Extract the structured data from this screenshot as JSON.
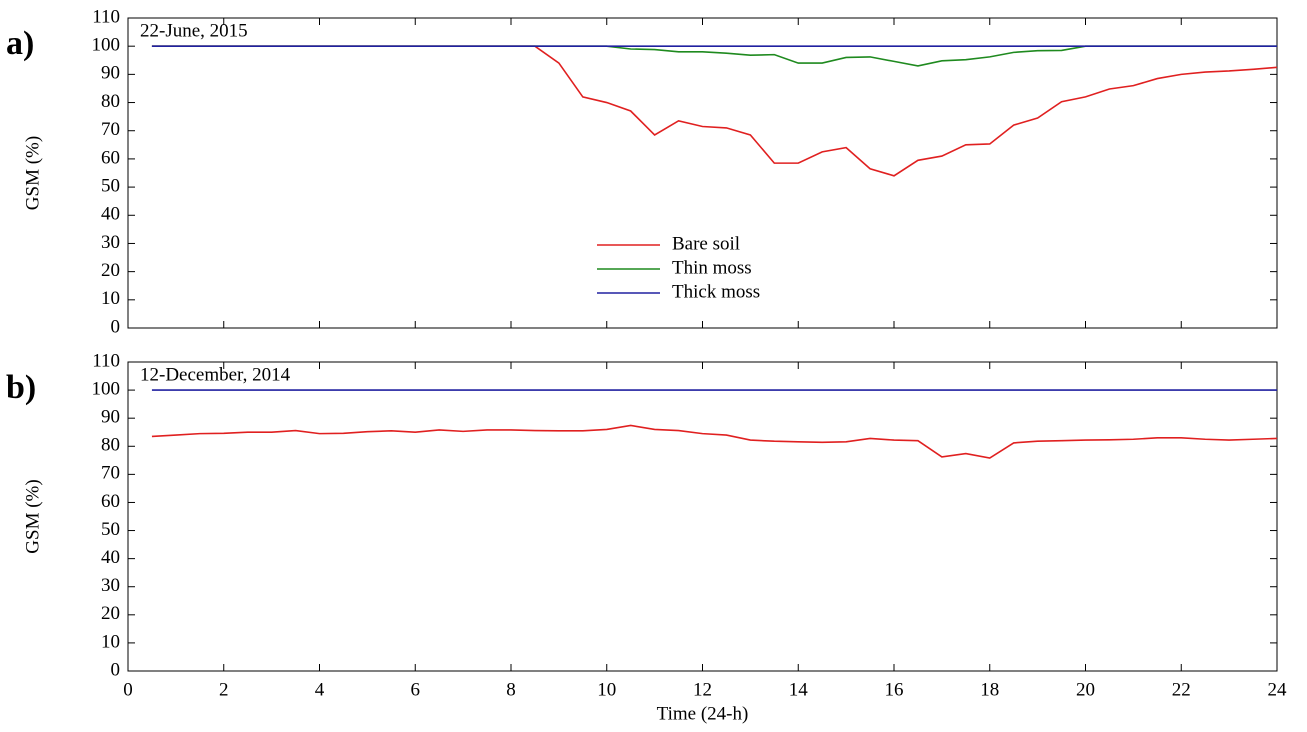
{
  "chart_data": [
    {
      "type": "line",
      "panel_label": "a)",
      "annotation": "22-June, 2015",
      "ylabel": "GSM (%)",
      "x": [
        0.5,
        1,
        1.5,
        2,
        2.5,
        3,
        3.5,
        4,
        4.5,
        5,
        5.5,
        6,
        6.5,
        7,
        7.5,
        8,
        8.5,
        9,
        9.5,
        10,
        10.5,
        11,
        11.5,
        12,
        12.5,
        13,
        13.5,
        14,
        14.5,
        15,
        15.5,
        16,
        16.5,
        17,
        17.5,
        18,
        18.5,
        19,
        19.5,
        20,
        20.5,
        21,
        21.5,
        22,
        22.5,
        23,
        23.5,
        24
      ],
      "series": [
        {
          "name": "Bare soil",
          "color": "#e02020",
          "values": [
            100,
            100,
            100,
            100,
            100,
            100,
            100,
            100,
            100,
            100,
            100,
            100,
            100,
            100,
            100,
            100,
            100,
            94,
            82,
            80,
            77,
            68.5,
            73.5,
            71.5,
            71,
            68.5,
            58.5,
            58.5,
            62.5,
            64,
            56.5,
            54,
            59.5,
            61,
            65,
            65.3,
            72,
            74.5,
            80.3,
            82,
            84.8,
            86,
            88.5,
            90,
            90.8,
            91.2,
            91.8,
            92.5
          ]
        },
        {
          "name": "Thin moss",
          "color": "#1f8a1f",
          "values": [
            100,
            100,
            100,
            100,
            100,
            100,
            100,
            100,
            100,
            100,
            100,
            100,
            100,
            100,
            100,
            100,
            100,
            100,
            100,
            100,
            99,
            98.8,
            98,
            98,
            97.5,
            96.8,
            97,
            94,
            94,
            96,
            96.2,
            94.6,
            93,
            94.8,
            95.2,
            96.2,
            97.8,
            98.4,
            98.5,
            100,
            100,
            100,
            100,
            100,
            100,
            100,
            100,
            100
          ]
        },
        {
          "name": "Thick moss",
          "color": "#2020a0",
          "values": [
            100,
            100,
            100,
            100,
            100,
            100,
            100,
            100,
            100,
            100,
            100,
            100,
            100,
            100,
            100,
            100,
            100,
            100,
            100,
            100,
            100,
            100,
            100,
            100,
            100,
            100,
            100,
            100,
            100,
            100,
            100,
            100,
            100,
            100,
            100,
            100,
            100,
            100,
            100,
            100,
            100,
            100,
            100,
            100,
            100,
            100,
            100,
            100
          ]
        }
      ],
      "xlim": [
        0,
        24
      ],
      "ylim": [
        0,
        110
      ],
      "yticks": [
        0,
        10,
        20,
        30,
        40,
        50,
        60,
        70,
        80,
        90,
        100,
        110
      ]
    },
    {
      "type": "line",
      "panel_label": "b)",
      "annotation": "12-December, 2014",
      "ylabel": "GSM (%)",
      "xlabel": "Time (24-h)",
      "x": [
        0.5,
        1,
        1.5,
        2,
        2.5,
        3,
        3.5,
        4,
        4.5,
        5,
        5.5,
        6,
        6.5,
        7,
        7.5,
        8,
        8.5,
        9,
        9.5,
        10,
        10.5,
        11,
        11.5,
        12,
        12.5,
        13,
        13.5,
        14,
        14.5,
        15,
        15.5,
        16,
        16.5,
        17,
        17.5,
        18,
        18.5,
        19,
        19.5,
        20,
        20.5,
        21,
        21.5,
        22,
        22.5,
        23,
        23.5,
        24
      ],
      "series": [
        {
          "color": "#e02020",
          "values": [
            83.5,
            84,
            84.5,
            84.6,
            85,
            85,
            85.6,
            84.5,
            84.6,
            85.2,
            85.5,
            85,
            85.8,
            85.3,
            85.8,
            85.8,
            85.6,
            85.5,
            85.5,
            86,
            87.4,
            86,
            85.6,
            84.5,
            84,
            82.2,
            81.8,
            81.6,
            81.4,
            81.6,
            82.8,
            82.2,
            82,
            76.2,
            77.4,
            75.8,
            81.2,
            81.8,
            82,
            82.2,
            82.3,
            82.5,
            83,
            83,
            82.5,
            82.2,
            82.5,
            82.8
          ]
        },
        {
          "color": "#2020a0",
          "values": [
            100,
            100,
            100,
            100,
            100,
            100,
            100,
            100,
            100,
            100,
            100,
            100,
            100,
            100,
            100,
            100,
            100,
            100,
            100,
            100,
            100,
            100,
            100,
            100,
            100,
            100,
            100,
            100,
            100,
            100,
            100,
            100,
            100,
            100,
            100,
            100,
            100,
            100,
            100,
            100,
            100,
            100,
            100,
            100,
            100,
            100,
            100,
            100
          ]
        }
      ],
      "xlim": [
        0,
        24
      ],
      "ylim": [
        0,
        110
      ],
      "yticks": [
        0,
        10,
        20,
        30,
        40,
        50,
        60,
        70,
        80,
        90,
        100,
        110
      ],
      "xticks": [
        0,
        2,
        4,
        6,
        8,
        10,
        12,
        14,
        16,
        18,
        20,
        22,
        24
      ]
    }
  ]
}
